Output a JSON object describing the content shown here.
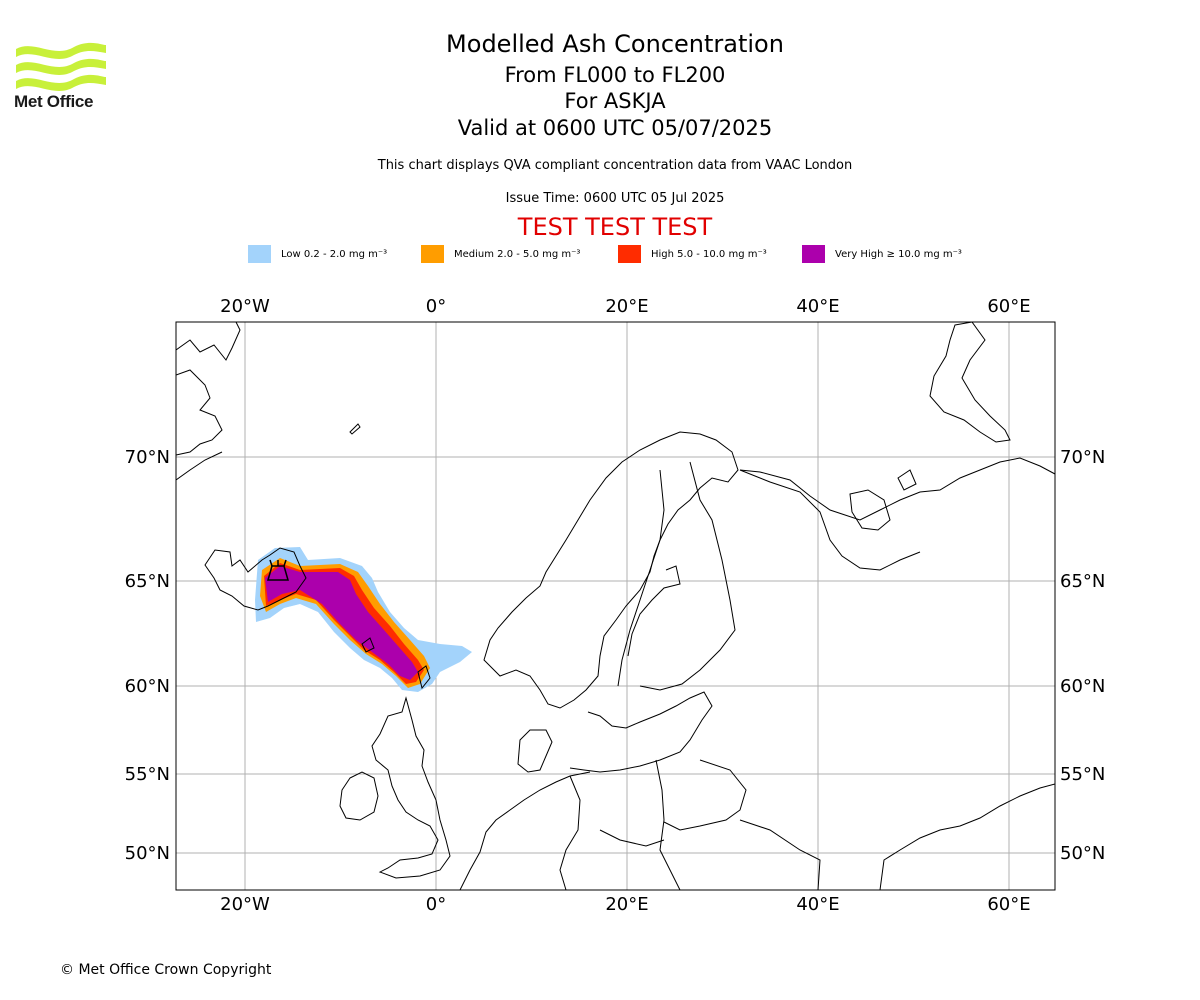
{
  "logo": {
    "text": "Met Office",
    "color": "#c8f03a"
  },
  "title": "Modelled Ash Concentration",
  "subtitle_levels": "From FL000 to FL200",
  "subtitle_volcano": "For ASKJA",
  "subtitle_valid": "Valid at 0600 UTC 05/07/2025",
  "description": "This chart displays QVA compliant concentration data from VAAC London",
  "issue_time": "Issue Time: 0600 UTC 05 Jul 2025",
  "test_banner": "TEST TEST TEST",
  "legend": [
    {
      "label": "Low 0.2 - 2.0 mg m⁻³",
      "color": "#a3d3fb"
    },
    {
      "label": "Medium 2.0 - 5.0 mg m⁻³",
      "color": "#ff9d00"
    },
    {
      "label": "High 5.0 - 10.0 mg m⁻³",
      "color": "#ff2c00"
    },
    {
      "label": "Very High  ≥  10.0 mg m⁻³",
      "color": "#ac00ac"
    }
  ],
  "axes": {
    "lon_labels": [
      "20°W",
      "0°",
      "20°E",
      "40°E",
      "60°E"
    ],
    "lat_labels": [
      "70°N",
      "65°N",
      "60°N",
      "55°N",
      "50°N"
    ]
  },
  "copyright": "© Met Office Crown Copyright"
}
